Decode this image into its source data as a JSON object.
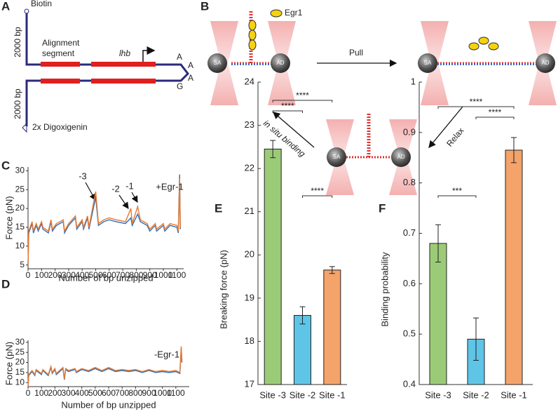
{
  "panel_labels": [
    "A",
    "B",
    "C",
    "D",
    "E",
    "F"
  ],
  "diagram_a": {
    "top": "Biotin",
    "upper_length": "2000 bp",
    "lower_length": "2000 bp",
    "segment_line1": "Alignment",
    "segment_line2": "segment",
    "gene": "lhb",
    "loop_bases": [
      "A",
      "A",
      "A",
      "G"
    ],
    "bottom": "2x Digoxigenin"
  },
  "diagram_b": {
    "protein": "Egr1",
    "pull": "Pull",
    "relax": "Relax",
    "binding": "in situ binding",
    "bead_left": "SA",
    "bead_right": "AD"
  },
  "chart_data": [
    {
      "type": "line",
      "xlabel": "Number of bp unzipped",
      "ylabel": "Force (pN)",
      "annotations": [
        "-3",
        "-2",
        "-1",
        "+Egr-1"
      ],
      "xlim": [
        0,
        1150
      ],
      "ylim": [
        4,
        31
      ],
      "xticks": [
        0,
        100,
        200,
        300,
        400,
        500,
        600,
        700,
        800,
        900,
        1000,
        1100
      ],
      "yticks": [
        5,
        10,
        15,
        20,
        25,
        30
      ],
      "x": [
        0,
        5,
        30,
        40,
        60,
        75,
        100,
        110,
        150,
        170,
        180,
        210,
        260,
        270,
        300,
        350,
        360,
        400,
        410,
        440,
        450,
        500,
        520,
        560,
        600,
        650,
        720,
        760,
        770,
        810,
        830,
        880,
        900,
        940,
        950,
        1000,
        1010,
        1050,
        1100,
        1110,
        1120,
        1125
      ],
      "series": [
        {
          "color": "#2f6fb5",
          "values": [
            5,
            13.5,
            16,
            13.5,
            15.5,
            14,
            16,
            14.5,
            13.5,
            16.5,
            14,
            15.5,
            16.5,
            13.5,
            15.5,
            17.5,
            14.5,
            16.5,
            14.5,
            17.5,
            14.5,
            23,
            15.5,
            16.5,
            17,
            16.5,
            16,
            17.5,
            15.5,
            18.5,
            16.5,
            15.5,
            14,
            15.5,
            14,
            15.5,
            14,
            15.5,
            15,
            13.5,
            29,
            14.5
          ]
        },
        {
          "color": "#e8772e",
          "values": [
            5,
            14,
            16.5,
            14,
            16,
            14.5,
            16.5,
            15,
            14,
            17,
            14.5,
            16,
            17,
            14,
            16,
            18,
            15,
            17,
            15,
            18,
            15,
            24.5,
            16,
            17,
            17.5,
            17,
            16.5,
            20,
            16,
            20.5,
            17,
            16,
            14.5,
            16,
            14.5,
            16,
            14.5,
            16,
            15.5,
            14,
            28,
            15
          ]
        }
      ]
    },
    {
      "type": "line",
      "xlabel": "Number of bp unzipped",
      "ylabel": "Force (pN)",
      "annotations": [
        "-Egr-1"
      ],
      "xlim": [
        0,
        1200
      ],
      "ylim": [
        8,
        31
      ],
      "xticks": [
        0,
        100,
        200,
        300,
        400,
        500,
        600,
        700,
        800,
        900,
        1000,
        1100
      ],
      "yticks": [
        10,
        15,
        20,
        25,
        30
      ],
      "x": [
        0,
        5,
        30,
        50,
        60,
        100,
        110,
        150,
        170,
        180,
        200,
        210,
        260,
        270,
        280,
        300,
        350,
        360,
        400,
        450,
        500,
        550,
        600,
        650,
        700,
        750,
        800,
        850,
        900,
        950,
        1000,
        1050,
        1100,
        1130,
        1140,
        1145
      ],
      "series": [
        {
          "color": "#2f6fb5",
          "values": [
            8,
            13.5,
            15.5,
            13.5,
            16,
            14,
            16,
            13.5,
            17.5,
            14.5,
            16.5,
            14,
            17,
            11.5,
            16.5,
            15.5,
            16.5,
            15,
            16.5,
            15.5,
            17,
            15.5,
            17,
            15.5,
            16,
            15.5,
            16,
            15,
            16,
            15,
            15.5,
            15,
            15.5,
            14.5,
            27,
            20
          ]
        },
        {
          "color": "#e8772e",
          "values": [
            8,
            14,
            16,
            14,
            16.5,
            14.5,
            16.5,
            14,
            18,
            15,
            17,
            14.5,
            17.5,
            12,
            17,
            16,
            17,
            15.5,
            17,
            16,
            17.5,
            16,
            17.5,
            16,
            16.5,
            16,
            16.5,
            15.5,
            16.5,
            15.5,
            16,
            15.5,
            16,
            15,
            28,
            21
          ]
        }
      ]
    },
    {
      "type": "bar",
      "ylabel": "Breaking force (pN)",
      "categories": [
        "Site -3",
        "Site -2",
        "Site -1"
      ],
      "values": [
        22.45,
        18.6,
        19.65
      ],
      "errors": [
        0.2,
        0.2,
        0.08
      ],
      "colors": [
        "#9ccb78",
        "#5ec5e6",
        "#f4a36b"
      ],
      "ylim": [
        17,
        24
      ],
      "yticks": [
        17,
        18,
        19,
        20,
        21,
        22,
        23,
        24
      ],
      "significance": [
        "****",
        "****",
        "****"
      ]
    },
    {
      "type": "bar",
      "ylabel": "Binding probability",
      "categories": [
        "Site -3",
        "Site -2",
        "Site -1"
      ],
      "values": [
        0.68,
        0.49,
        0.865
      ],
      "errors": [
        0.037,
        0.042,
        0.025
      ],
      "colors": [
        "#9ccb78",
        "#5ec5e6",
        "#f4a36b"
      ],
      "ylim": [
        0.4,
        1
      ],
      "yticks": [
        0.4,
        0.5,
        0.6,
        0.7,
        0.8,
        0.9,
        1
      ],
      "significance": [
        "****",
        "****",
        "***"
      ]
    }
  ]
}
